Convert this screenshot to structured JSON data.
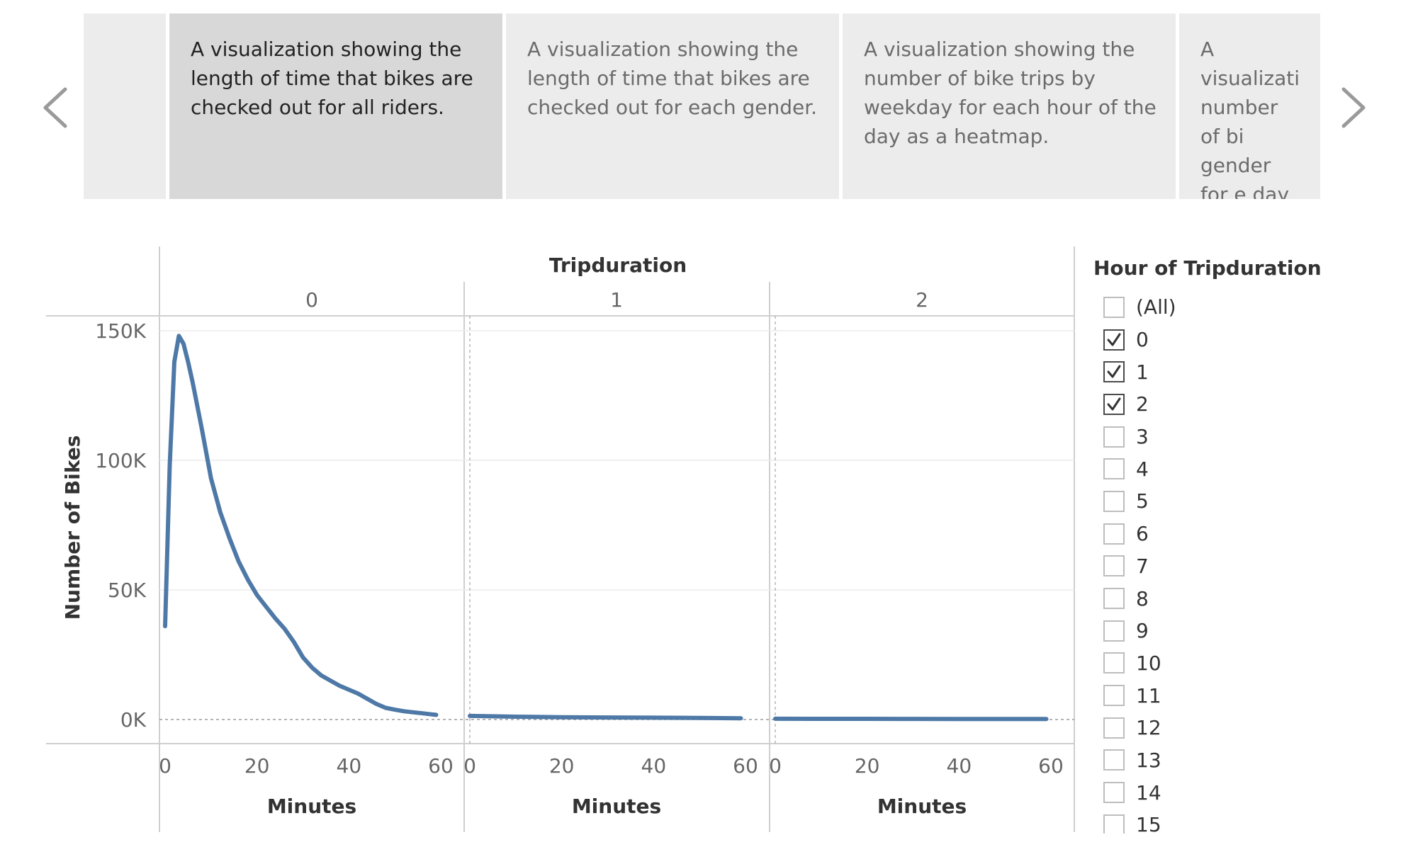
{
  "story": {
    "points": [
      {
        "text": ""
      },
      {
        "text": "A  visualization showing the length of time that bikes are checked out for all riders."
      },
      {
        "text": "A visualization showing the length of time that bikes are checked out for each gender."
      },
      {
        "text": "A visualization showing the number of bike trips by weekday for each hour of the day as a heatmap."
      },
      {
        "text": "A visualizati number of bi gender for e day of the w"
      }
    ],
    "active_index": 1,
    "prev_icon": "chevron-left-icon",
    "next_icon": "chevron-right-icon"
  },
  "chart_data": {
    "type": "line",
    "title": "Tripduration",
    "ylabel": "Number of Bikes",
    "xlabel": "Minutes",
    "ylim": [
      0,
      150000
    ],
    "y_ticks": [
      0,
      50000,
      100000,
      150000
    ],
    "y_tick_labels": [
      "0K",
      "50K",
      "100K",
      "150K"
    ],
    "xlim": [
      0,
      60
    ],
    "x_ticks": [
      0,
      20,
      40,
      60
    ],
    "x_tick_labels": [
      "0",
      "20",
      "40",
      "60"
    ],
    "color": "#4e79a7",
    "grid": true,
    "panels": [
      {
        "label": "0",
        "x": [
          0,
          1,
          2,
          3,
          4,
          5,
          6,
          7,
          8,
          10,
          12,
          14,
          16,
          18,
          20,
          22,
          24,
          26,
          28,
          30,
          32,
          34,
          36,
          38,
          40,
          42,
          44,
          46,
          48,
          50,
          52,
          54,
          56,
          58,
          59
        ],
        "y": [
          36000,
          98000,
          138000,
          148000,
          145000,
          138000,
          130000,
          121000,
          112000,
          93000,
          80000,
          70000,
          61000,
          54000,
          48000,
          43500,
          39000,
          35000,
          30000,
          24000,
          20000,
          17000,
          15000,
          13000,
          11500,
          10000,
          8000,
          6000,
          4500,
          3800,
          3200,
          2800,
          2400,
          2000,
          1800
        ]
      },
      {
        "label": "1",
        "x": [
          0,
          10,
          20,
          30,
          40,
          50,
          59
        ],
        "y": [
          1400,
          1100,
          900,
          800,
          700,
          600,
          500
        ]
      },
      {
        "label": "2",
        "x": [
          0,
          10,
          20,
          30,
          40,
          50,
          59
        ],
        "y": [
          300,
          280,
          260,
          240,
          220,
          200,
          200
        ]
      }
    ]
  },
  "filter": {
    "title": "Hour of Tripduration",
    "items": [
      {
        "label": "(All)",
        "checked": false
      },
      {
        "label": "0",
        "checked": true
      },
      {
        "label": "1",
        "checked": true
      },
      {
        "label": "2",
        "checked": true
      },
      {
        "label": "3",
        "checked": false
      },
      {
        "label": "4",
        "checked": false
      },
      {
        "label": "5",
        "checked": false
      },
      {
        "label": "6",
        "checked": false
      },
      {
        "label": "7",
        "checked": false
      },
      {
        "label": "8",
        "checked": false
      },
      {
        "label": "9",
        "checked": false
      },
      {
        "label": "10",
        "checked": false
      },
      {
        "label": "11",
        "checked": false
      },
      {
        "label": "12",
        "checked": false
      },
      {
        "label": "13",
        "checked": false
      },
      {
        "label": "14",
        "checked": false
      },
      {
        "label": "15",
        "checked": false
      }
    ]
  }
}
